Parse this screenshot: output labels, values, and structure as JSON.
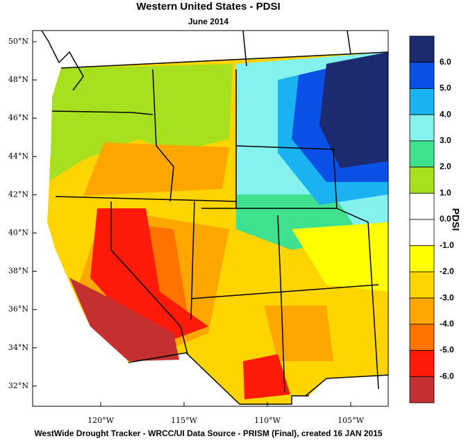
{
  "header": {
    "title": "Western United States - PDSI",
    "subtitle": "June 2014"
  },
  "map": {
    "lat_labels": [
      "50°N",
      "48°N",
      "46°N",
      "44°N",
      "42°N",
      "40°N",
      "38°N",
      "36°N",
      "34°N",
      "32°N"
    ],
    "lon_labels": [
      "120°W",
      "115°W",
      "110°W",
      "105°W"
    ]
  },
  "colorbar": {
    "title": "PDSI",
    "colors": [
      "#1c2a70",
      "#0a4fe6",
      "#1ab2f0",
      "#86f2ee",
      "#3fe08e",
      "#a6e01e",
      "#ffffff",
      "#ffffff",
      "#ffff00",
      "#ffd500",
      "#ffa600",
      "#ff7300",
      "#ff1a0a",
      "#c43030"
    ],
    "ticks": [
      {
        "value": 6,
        "label": "6.0"
      },
      {
        "value": 5,
        "label": "5.0"
      },
      {
        "value": 4,
        "label": "4.0"
      },
      {
        "value": 3,
        "label": "3.0"
      },
      {
        "value": 2,
        "label": "2.0"
      },
      {
        "value": 1,
        "label": "1.0"
      },
      {
        "value": 0,
        "label": "0.0"
      },
      {
        "value": -1,
        "label": "-1.0"
      },
      {
        "value": -2,
        "label": "-2.0"
      },
      {
        "value": -3,
        "label": "-3.0"
      },
      {
        "value": -4,
        "label": "-4.0"
      },
      {
        "value": -5,
        "label": "-5.0"
      },
      {
        "value": -6,
        "label": "-6.0"
      }
    ]
  },
  "footer": "WestWide Drought Tracker - WRCC/UI  Data Source - PRISM (Final), created 16 JAN 2015"
}
